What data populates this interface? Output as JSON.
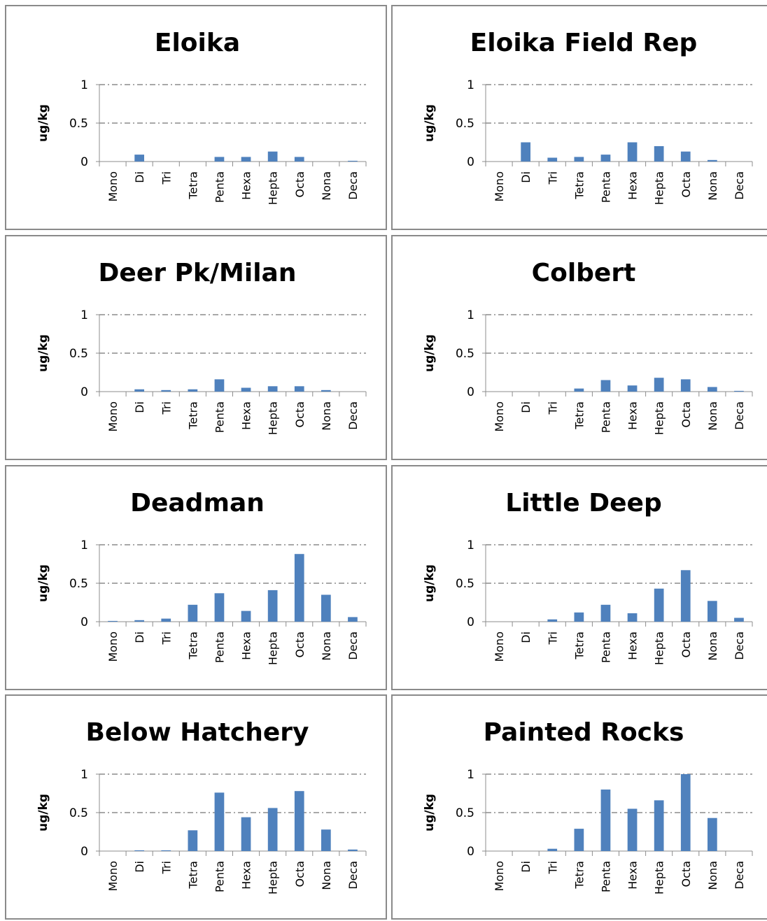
{
  "colors": {
    "bar": "#4f81bd",
    "grid": "#8c8c8c",
    "axis": "#8c8c8c",
    "border": "#8a8a8a"
  },
  "chart_data": [
    {
      "type": "bar",
      "title": "Eloika",
      "ylabel": "ug/kg",
      "xlabel": "",
      "ylim": [
        0,
        1
      ],
      "yticks": [
        "0",
        "0.5",
        "1"
      ],
      "grid": true,
      "categories": [
        "Mono",
        "Di",
        "Tri",
        "Tetra",
        "Penta",
        "Hexa",
        "Hepta",
        "Octa",
        "Nona",
        "Deca"
      ],
      "values": [
        0,
        0.09,
        0,
        0,
        0.06,
        0.06,
        0.13,
        0.06,
        0,
        0.01
      ]
    },
    {
      "type": "bar",
      "title": "Eloika Field Rep",
      "ylabel": "ug/kg",
      "xlabel": "",
      "ylim": [
        0,
        1
      ],
      "yticks": [
        "0",
        "0.5",
        "1"
      ],
      "grid": true,
      "categories": [
        "Mono",
        "Di",
        "Tri",
        "Tetra",
        "Penta",
        "Hexa",
        "Hepta",
        "Octa",
        "Nona",
        "Deca"
      ],
      "values": [
        0,
        0.25,
        0.05,
        0.06,
        0.09,
        0.25,
        0.2,
        0.13,
        0.02,
        0
      ]
    },
    {
      "type": "bar",
      "title": "Deer Pk/Milan",
      "ylabel": "ug/kg",
      "xlabel": "",
      "ylim": [
        0,
        1
      ],
      "yticks": [
        "0",
        "0.5",
        "1"
      ],
      "grid": true,
      "categories": [
        "Mono",
        "Di",
        "Tri",
        "Tetra",
        "Penta",
        "Hexa",
        "Hepta",
        "Octa",
        "Nona",
        "Deca"
      ],
      "values": [
        0,
        0.03,
        0.02,
        0.03,
        0.16,
        0.05,
        0.07,
        0.07,
        0.02,
        0
      ]
    },
    {
      "type": "bar",
      "title": "Colbert",
      "ylabel": "ug/kg",
      "xlabel": "",
      "ylim": [
        0,
        1
      ],
      "yticks": [
        "0",
        "0.5",
        "1"
      ],
      "grid": true,
      "categories": [
        "Mono",
        "Di",
        "Tri",
        "Tetra",
        "Penta",
        "Hexa",
        "Hepta",
        "Octa",
        "Nona",
        "Deca"
      ],
      "values": [
        0,
        0,
        0,
        0.04,
        0.15,
        0.08,
        0.18,
        0.16,
        0.06,
        0.01
      ]
    },
    {
      "type": "bar",
      "title": "Deadman",
      "ylabel": "ug/kg",
      "xlabel": "",
      "ylim": [
        0,
        1
      ],
      "yticks": [
        "0",
        "0.5",
        "1"
      ],
      "grid": true,
      "categories": [
        "Mono",
        "Di",
        "Tri",
        "Tetra",
        "Penta",
        "Hexa",
        "Hepta",
        "Octa",
        "Nona",
        "Deca"
      ],
      "values": [
        0.01,
        0.02,
        0.04,
        0.22,
        0.37,
        0.14,
        0.41,
        0.88,
        0.35,
        0.06
      ]
    },
    {
      "type": "bar",
      "title": "Little Deep",
      "ylabel": "ug/kg",
      "xlabel": "",
      "ylim": [
        0,
        1
      ],
      "yticks": [
        "0",
        "0.5",
        "1"
      ],
      "grid": true,
      "categories": [
        "Mono",
        "Di",
        "Tri",
        "Tetra",
        "Penta",
        "Hexa",
        "Hepta",
        "Octa",
        "Nona",
        "Deca"
      ],
      "values": [
        0,
        0,
        0.03,
        0.12,
        0.22,
        0.11,
        0.43,
        0.67,
        0.27,
        0.05
      ]
    },
    {
      "type": "bar",
      "title": "Below Hatchery",
      "ylabel": "ug/kg",
      "xlabel": "",
      "ylim": [
        0,
        1
      ],
      "yticks": [
        "0",
        "0.5",
        "1"
      ],
      "grid": true,
      "categories": [
        "Mono",
        "Di",
        "Tri",
        "Tetra",
        "Penta",
        "Hexa",
        "Hepta",
        "Octa",
        "Nona",
        "Deca"
      ],
      "values": [
        0,
        0.01,
        0.01,
        0.27,
        0.76,
        0.44,
        0.56,
        0.78,
        0.28,
        0.02
      ]
    },
    {
      "type": "bar",
      "title": "Painted Rocks",
      "ylabel": "ug/kg",
      "xlabel": "",
      "ylim": [
        0,
        1
      ],
      "yticks": [
        "0",
        "0.5",
        "1"
      ],
      "grid": true,
      "categories": [
        "Mono",
        "Di",
        "Tri",
        "Tetra",
        "Penta",
        "Hexa",
        "Hepta",
        "Octa",
        "Nona",
        "Deca"
      ],
      "values": [
        0,
        0,
        0.03,
        0.29,
        0.8,
        0.55,
        0.66,
        1.0,
        0.43,
        0
      ]
    }
  ]
}
